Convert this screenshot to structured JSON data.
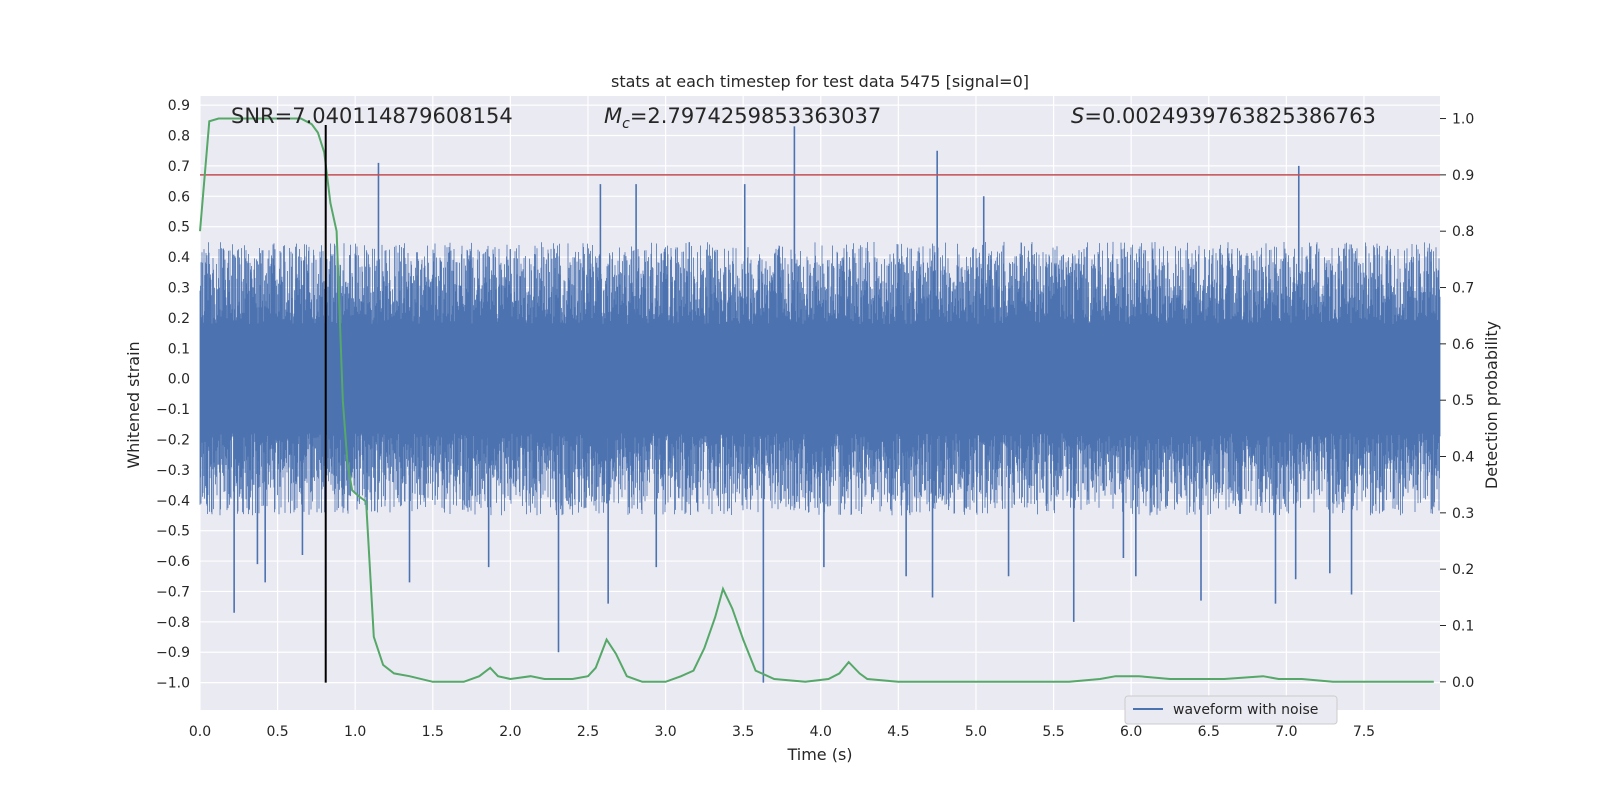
{
  "chart_data": {
    "type": "line",
    "title": "stats at each timestep for test data 5475 [signal=0]",
    "xlabel": "Time (s)",
    "ylabel": "Whitened strain",
    "y2label": "Detection probability",
    "xlim": [
      0.0,
      7.99
    ],
    "ylim": [
      -1.09,
      0.93
    ],
    "y2lim": [
      -0.05,
      1.04
    ],
    "x_ticks": [
      0.0,
      0.5,
      1.0,
      1.5,
      2.0,
      2.5,
      3.0,
      3.5,
      4.0,
      4.5,
      5.0,
      5.5,
      6.0,
      6.5,
      7.0,
      7.5
    ],
    "x_tick_labels": [
      "0.0",
      "0.5",
      "1.0",
      "1.5",
      "2.0",
      "2.5",
      "3.0",
      "3.5",
      "4.0",
      "4.5",
      "5.0",
      "5.5",
      "6.0",
      "6.5",
      "7.0",
      "7.5"
    ],
    "y_ticks": [
      0.9,
      0.8,
      0.7,
      0.6,
      0.5,
      0.4,
      0.3,
      0.2,
      0.1,
      0.0,
      -0.1,
      -0.2,
      -0.3,
      -0.4,
      -0.5,
      -0.6,
      -0.7,
      -0.8,
      -0.9,
      -1.0
    ],
    "y_tick_labels": [
      "0.9",
      "0.8",
      "0.7",
      "0.6",
      "0.5",
      "0.4",
      "0.3",
      "0.2",
      "0.1",
      "0.0",
      "−0.1",
      "−0.2",
      "−0.3",
      "−0.4",
      "−0.5",
      "−0.6",
      "−0.7",
      "−0.8",
      "−0.9",
      "−1.0"
    ],
    "y2_ticks": [
      1.0,
      0.9,
      0.8,
      0.7,
      0.6,
      0.5,
      0.4,
      0.3,
      0.2,
      0.1,
      0.0
    ],
    "y2_tick_labels": [
      "1.0",
      "0.9",
      "0.8",
      "0.7",
      "0.6",
      "0.5",
      "0.4",
      "0.3",
      "0.2",
      "0.1",
      "0.0"
    ],
    "grid": true,
    "legend": {
      "placement": "lower-right",
      "entries": [
        "waveform with noise"
      ]
    },
    "annotations": {
      "snr": "SNR=7.040114879608154",
      "mc_symbol": "M",
      "mc_sub": "c",
      "mc_value": "=2.7974259853363037",
      "s_symbol": "S",
      "s_value": "=0.002493976382538676​3"
    },
    "strain_series": {
      "name": "waveform with noise",
      "color": "#4c72b0",
      "spikes": [
        [
          0.22,
          -0.77
        ],
        [
          0.37,
          -0.61
        ],
        [
          0.42,
          -0.67
        ],
        [
          0.66,
          -0.58
        ],
        [
          1.15,
          0.71
        ],
        [
          1.35,
          -0.67
        ],
        [
          1.86,
          -0.62
        ],
        [
          2.31,
          -0.9
        ],
        [
          2.58,
          0.64
        ],
        [
          2.63,
          -0.74
        ],
        [
          2.81,
          0.64
        ],
        [
          2.94,
          -0.62
        ],
        [
          3.51,
          0.64
        ],
        [
          3.63,
          -1.0
        ],
        [
          3.83,
          0.83
        ],
        [
          4.02,
          -0.62
        ],
        [
          4.55,
          -0.65
        ],
        [
          4.75,
          0.75
        ],
        [
          4.72,
          -0.72
        ],
        [
          5.05,
          0.6
        ],
        [
          5.21,
          -0.65
        ],
        [
          5.63,
          -0.8
        ],
        [
          5.95,
          -0.59
        ],
        [
          6.03,
          -0.65
        ],
        [
          6.45,
          -0.73
        ],
        [
          6.93,
          -0.74
        ],
        [
          7.08,
          0.7
        ],
        [
          7.06,
          -0.66
        ],
        [
          7.28,
          -0.64
        ],
        [
          7.42,
          -0.71
        ]
      ],
      "envelope_upper": 0.45,
      "envelope_lower": -0.45
    },
    "probability_series": {
      "color": "#55a868",
      "x": [
        0.0,
        0.06,
        0.12,
        0.2,
        0.3,
        0.5,
        0.65,
        0.72,
        0.76,
        0.8,
        0.84,
        0.88,
        0.92,
        0.95,
        0.98,
        1.02,
        1.07,
        1.12,
        1.18,
        1.25,
        1.35,
        1.5,
        1.7,
        1.8,
        1.87,
        1.92,
        2.0,
        2.13,
        2.22,
        2.33,
        2.4,
        2.5,
        2.55,
        2.62,
        2.68,
        2.75,
        2.85,
        3.0,
        3.1,
        3.18,
        3.25,
        3.32,
        3.37,
        3.43,
        3.5,
        3.58,
        3.7,
        3.9,
        4.05,
        4.12,
        4.18,
        4.25,
        4.3,
        4.5,
        5.0,
        5.6,
        5.8,
        5.9,
        6.05,
        6.25,
        6.4,
        6.6,
        6.85,
        6.95,
        7.1,
        7.3,
        7.6,
        7.95
      ],
      "y": [
        0.8,
        0.995,
        1.0,
        1.0,
        1.0,
        1.0,
        1.0,
        0.99,
        0.975,
        0.94,
        0.85,
        0.8,
        0.5,
        0.39,
        0.34,
        0.33,
        0.32,
        0.08,
        0.03,
        0.015,
        0.01,
        0.0,
        0.0,
        0.01,
        0.025,
        0.01,
        0.005,
        0.01,
        0.005,
        0.005,
        0.005,
        0.01,
        0.025,
        0.075,
        0.05,
        0.01,
        0.0,
        0.0,
        0.01,
        0.02,
        0.06,
        0.115,
        0.165,
        0.13,
        0.075,
        0.02,
        0.005,
        0.0,
        0.005,
        0.015,
        0.035,
        0.015,
        0.005,
        0.0,
        0.0,
        0.0,
        0.005,
        0.01,
        0.01,
        0.005,
        0.005,
        0.005,
        0.01,
        0.005,
        0.005,
        0.0,
        0.0,
        0.0
      ]
    },
    "threshold": {
      "value": 0.9,
      "axis": "y2",
      "color": "#c44e52"
    },
    "event_marker": {
      "x": 0.81,
      "color": "#000000"
    }
  }
}
